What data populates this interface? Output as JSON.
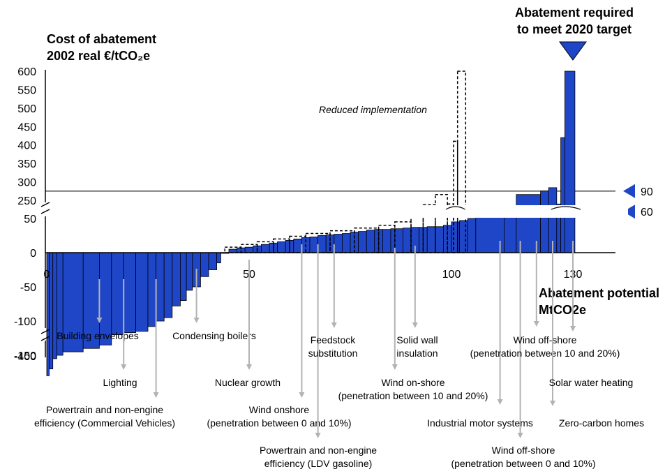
{
  "chart_data": {
    "type": "bar",
    "subtype": "marginal-abatement-cost-curve",
    "title": "",
    "ylabel": [
      "Cost of abatement",
      "2002 real €/tCO₂e"
    ],
    "xlabel": [
      "Abatement potential",
      "MtCO2e"
    ],
    "x_ticks": [
      "0",
      "50",
      "100",
      "130"
    ],
    "x_tick_values": [
      0,
      50,
      100,
      130
    ],
    "y_ticks_upper": [
      "600",
      "550",
      "500",
      "450",
      "400",
      "350",
      "300",
      "250"
    ],
    "y_ticks_lower": [
      "50",
      "0",
      "-50",
      "-100",
      "-150"
    ],
    "y_tick_bottom": "-400",
    "axis_break": true,
    "xlim": [
      0,
      140
    ],
    "ylim": [
      -400,
      600
    ],
    "target_label": [
      "Abatement required",
      "to meet 2020 target"
    ],
    "target_x": 130,
    "reference_lines": [
      {
        "label": "90",
        "value": 90
      },
      {
        "label": "60",
        "value": 60
      }
    ],
    "reduced_label": "Reduced implementation",
    "bar_color": "#2046c8",
    "bars": [
      {
        "x0": 0,
        "x1": 0.6,
        "y": -180
      },
      {
        "x0": 0.6,
        "x1": 1.5,
        "y": -170
      },
      {
        "x0": 1.5,
        "x1": 2.5,
        "y": -155
      },
      {
        "x0": 2.5,
        "x1": 4,
        "y": -150
      },
      {
        "x0": 4,
        "x1": 9,
        "y": -145
      },
      {
        "x0": 9,
        "x1": 13,
        "y": -140
      },
      {
        "x0": 13,
        "x1": 16,
        "y": -135
      },
      {
        "x0": 16,
        "x1": 19,
        "y": -120
      },
      {
        "x0": 19,
        "x1": 22,
        "y": -117
      },
      {
        "x0": 22,
        "x1": 25,
        "y": -115
      },
      {
        "x0": 25,
        "x1": 27,
        "y": -108
      },
      {
        "x0": 27,
        "x1": 29,
        "y": -100
      },
      {
        "x0": 29,
        "x1": 31,
        "y": -95
      },
      {
        "x0": 31,
        "x1": 33,
        "y": -78
      },
      {
        "x0": 33,
        "x1": 34.5,
        "y": -70
      },
      {
        "x0": 34.5,
        "x1": 36,
        "y": -55
      },
      {
        "x0": 36,
        "x1": 38,
        "y": -50
      },
      {
        "x0": 38,
        "x1": 40,
        "y": -35
      },
      {
        "x0": 40,
        "x1": 42,
        "y": -25
      },
      {
        "x0": 42,
        "x1": 43,
        "y": -15
      },
      {
        "x0": 43,
        "x1": 45,
        "y": 0
      },
      {
        "x0": 45,
        "x1": 47,
        "y": 5
      },
      {
        "x0": 47,
        "x1": 49,
        "y": 7
      },
      {
        "x0": 49,
        "x1": 51,
        "y": 8
      },
      {
        "x0": 51,
        "x1": 53,
        "y": 10
      },
      {
        "x0": 53,
        "x1": 55,
        "y": 12
      },
      {
        "x0": 55,
        "x1": 57,
        "y": 14
      },
      {
        "x0": 57,
        "x1": 59,
        "y": 16
      },
      {
        "x0": 59,
        "x1": 61,
        "y": 18
      },
      {
        "x0": 61,
        "x1": 63,
        "y": 20
      },
      {
        "x0": 63,
        "x1": 65,
        "y": 22
      },
      {
        "x0": 65,
        "x1": 67,
        "y": 23
      },
      {
        "x0": 67,
        "x1": 69,
        "y": 25
      },
      {
        "x0": 69,
        "x1": 71,
        "y": 26
      },
      {
        "x0": 71,
        "x1": 73,
        "y": 27
      },
      {
        "x0": 73,
        "x1": 75,
        "y": 28
      },
      {
        "x0": 75,
        "x1": 77,
        "y": 30
      },
      {
        "x0": 77,
        "x1": 79,
        "y": 31
      },
      {
        "x0": 79,
        "x1": 81,
        "y": 33
      },
      {
        "x0": 81,
        "x1": 83,
        "y": 34
      },
      {
        "x0": 83,
        "x1": 85,
        "y": 34
      },
      {
        "x0": 85,
        "x1": 88,
        "y": 35
      },
      {
        "x0": 88,
        "x1": 90,
        "y": 36
      },
      {
        "x0": 90,
        "x1": 92,
        "y": 37
      },
      {
        "x0": 92,
        "x1": 94,
        "y": 37
      },
      {
        "x0": 94,
        "x1": 96,
        "y": 38
      },
      {
        "x0": 96,
        "x1": 98,
        "y": 38
      },
      {
        "x0": 98,
        "x1": 100,
        "y": 40
      },
      {
        "x0": 100,
        "x1": 102,
        "y": 45
      },
      {
        "x0": 102,
        "x1": 104,
        "y": 47
      },
      {
        "x0": 104,
        "x1": 106,
        "y": 50
      },
      {
        "x0": 106,
        "x1": 113,
        "y": 55
      },
      {
        "x0": 113,
        "x1": 116,
        "y": 68
      },
      {
        "x0": 116,
        "x1": 122,
        "y": 85
      },
      {
        "x0": 122,
        "x1": 124,
        "y": 90
      },
      {
        "x0": 124,
        "x1": 126,
        "y": 95
      },
      {
        "x0": 126,
        "x1": 127,
        "y": 240
      },
      {
        "x0": 127,
        "x1": 128,
        "y": 420
      },
      {
        "x0": 128,
        "x1": 130.5,
        "y": 600
      }
    ],
    "dashed_bars": [
      {
        "x0": 44,
        "x1": 48,
        "y": 8
      },
      {
        "x0": 48,
        "x1": 52,
        "y": 12
      },
      {
        "x0": 52,
        "x1": 56,
        "y": 16
      },
      {
        "x0": 56,
        "x1": 60,
        "y": 20
      },
      {
        "x0": 60,
        "x1": 64,
        "y": 24
      },
      {
        "x0": 64,
        "x1": 70,
        "y": 28
      },
      {
        "x0": 70,
        "x1": 76,
        "y": 32
      },
      {
        "x0": 76,
        "x1": 82,
        "y": 36
      },
      {
        "x0": 82,
        "x1": 86,
        "y": 40
      },
      {
        "x0": 86,
        "x1": 90,
        "y": 45
      },
      {
        "x0": 90,
        "x1": 93,
        "y": 55
      },
      {
        "x0": 93,
        "x1": 96,
        "y": 70
      },
      {
        "x0": 96,
        "x1": 99,
        "y": 85
      },
      {
        "x0": 99,
        "x1": 100.5,
        "y": 240
      },
      {
        "x0": 100.5,
        "x1": 101.5,
        "y": 410
      },
      {
        "x0": 101.5,
        "x1": 103.5,
        "y": 600
      }
    ],
    "annotations": [
      {
        "name": "building-envelopes",
        "lines": [
          "Building envelopes"
        ],
        "x": 13
      },
      {
        "name": "lighting",
        "lines": [
          "Lighting"
        ],
        "x": 19
      },
      {
        "name": "powertrain-cv",
        "lines": [
          "Powertrain and non-engine",
          "efficiency (Commercial Vehicles)"
        ],
        "x": 27
      },
      {
        "name": "condensing-boilers",
        "lines": [
          "Condensing boilers"
        ],
        "x": 37
      },
      {
        "name": "nuclear-growth",
        "lines": [
          "Nuclear growth"
        ],
        "x": 50
      },
      {
        "name": "wind-onshore-0-10",
        "lines": [
          "Wind onshore",
          "(penetration between 0 and 10%)"
        ],
        "x": 63
      },
      {
        "name": "powertrain-ldv",
        "lines": [
          "Powertrain and non-engine",
          "efficiency (LDV gasoline)"
        ],
        "x": 67
      },
      {
        "name": "feedstock-substitution",
        "lines": [
          "Feedstock",
          "substitution"
        ],
        "x": 71
      },
      {
        "name": "wind-onshore-10-20",
        "lines": [
          "Wind on-shore",
          "(penetration between 10 and 20%)"
        ],
        "x": 86
      },
      {
        "name": "solid-wall-insulation",
        "lines": [
          "Solid wall",
          "insulation"
        ],
        "x": 91
      },
      {
        "name": "industrial-motor-systems",
        "lines": [
          "Industrial motor systems"
        ],
        "x": 112
      },
      {
        "name": "wind-offshore-0-10",
        "lines": [
          "Wind off-shore",
          "(penetration between 0 and 10%)"
        ],
        "x": 117
      },
      {
        "name": "wind-offshore-10-20",
        "lines": [
          "Wind off-shore",
          "(penetration between 10 and 20%)"
        ],
        "x": 121
      },
      {
        "name": "zero-carbon-homes",
        "lines": [
          "Zero-carbon homes"
        ],
        "x": 125
      },
      {
        "name": "solar-water-heating",
        "lines": [
          "Solar water heating"
        ],
        "x": 130
      }
    ]
  }
}
